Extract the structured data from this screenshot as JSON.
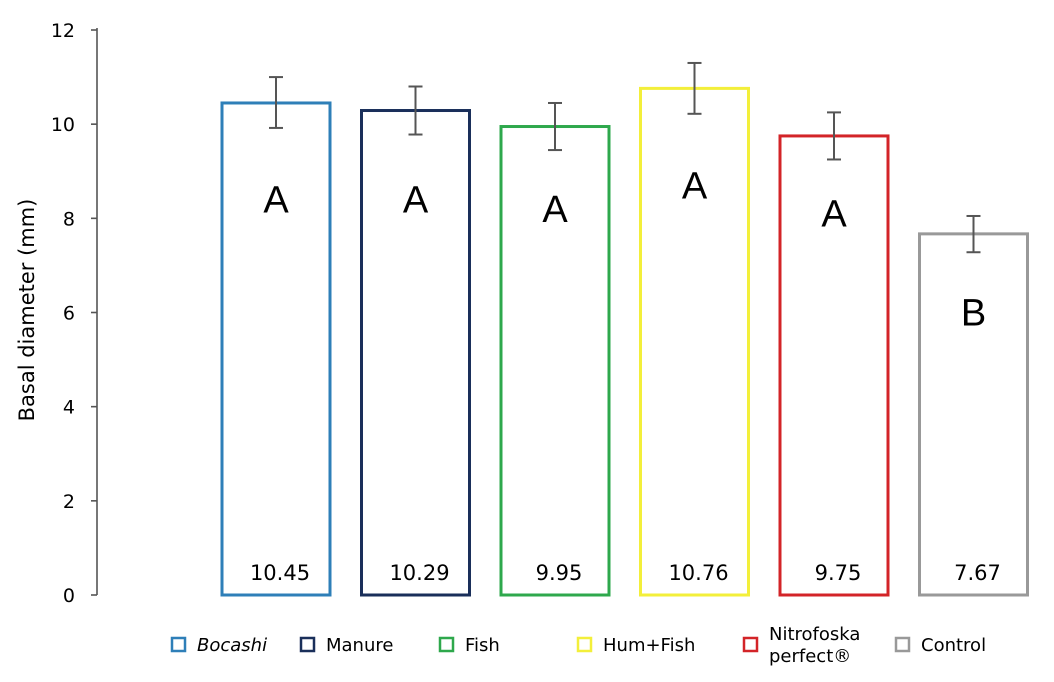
{
  "chart_data": {
    "type": "bar",
    "title": "",
    "xlabel": "",
    "ylabel": "Basal diameter (mm)",
    "ylim": [
      0,
      12
    ],
    "yticks": [
      0,
      2,
      4,
      6,
      8,
      10,
      12
    ],
    "categories": [
      "Bocashi",
      "Manure",
      "Fish",
      "Hum+Fish",
      "Nitrofoska perfect®",
      "Control"
    ],
    "values": [
      10.45,
      10.29,
      9.95,
      10.76,
      9.75,
      7.67
    ],
    "value_labels": [
      "10.45",
      "10.29",
      "9.95",
      "10.76",
      "9.75",
      "7.67"
    ],
    "error_upper": [
      11.0,
      10.8,
      10.45,
      11.3,
      10.25,
      8.05
    ],
    "error_lower": [
      9.92,
      9.78,
      9.45,
      10.22,
      9.25,
      7.28
    ],
    "group_letters": [
      "A",
      "A",
      "A",
      "A",
      "A",
      "B"
    ],
    "letter_values": [
      8.4,
      8.4,
      8.2,
      8.7,
      8.1,
      6.0
    ],
    "colors": [
      "#2e7fb8",
      "#1a2f5a",
      "#2ea84c",
      "#f3ef3a",
      "#d32428",
      "#999999"
    ],
    "legend": {
      "position": "bottom",
      "entries": [
        {
          "label": "Bocashi",
          "italic": true
        },
        {
          "label": "Manure",
          "italic": false
        },
        {
          "label": "Fish",
          "italic": false
        },
        {
          "label": "Hum+Fish",
          "italic": false
        },
        {
          "label": "Nitrofoska",
          "label2": "perfect®",
          "italic": false
        },
        {
          "label": "Control",
          "italic": false
        }
      ]
    },
    "error_bar_color": "#555555"
  }
}
